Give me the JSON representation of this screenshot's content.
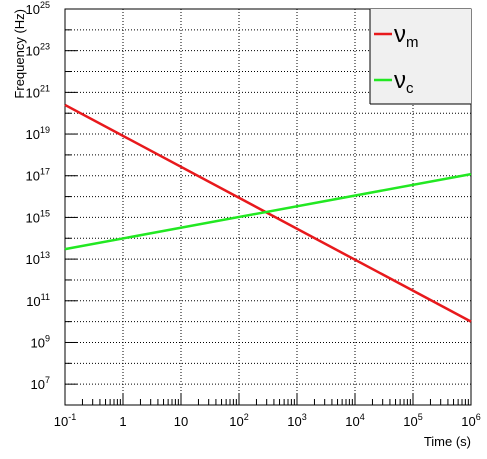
{
  "chart_data": {
    "type": "line",
    "xlabel": "Time (s)",
    "ylabel": "Frequency (Hz)",
    "x_scale": "log",
    "y_scale": "log",
    "xlim": [
      0.1,
      1000000
    ],
    "ylim": [
      1000000,
      1e+25
    ],
    "grid": true,
    "legend_position": "top-right",
    "x_ticks": [
      {
        "value": 0.1,
        "base": "10",
        "exp": "-1"
      },
      {
        "value": 1,
        "base": "1",
        "exp": ""
      },
      {
        "value": 10,
        "base": "10",
        "exp": ""
      },
      {
        "value": 100,
        "base": "10",
        "exp": "2"
      },
      {
        "value": 1000,
        "base": "10",
        "exp": "3"
      },
      {
        "value": 10000,
        "base": "10",
        "exp": "4"
      },
      {
        "value": 100000,
        "base": "10",
        "exp": "5"
      },
      {
        "value": 1000000,
        "base": "10",
        "exp": "6"
      }
    ],
    "y_ticks": [
      {
        "value": 10000000.0,
        "base": "10",
        "exp": "7"
      },
      {
        "value": 1000000000.0,
        "base": "10",
        "exp": "9"
      },
      {
        "value": 100000000000.0,
        "base": "10",
        "exp": "11"
      },
      {
        "value": 10000000000000.0,
        "base": "10",
        "exp": "13"
      },
      {
        "value": 1000000000000000.0,
        "base": "10",
        "exp": "15"
      },
      {
        "value": 1e+17,
        "base": "10",
        "exp": "17"
      },
      {
        "value": 1e+19,
        "base": "10",
        "exp": "19"
      },
      {
        "value": 1e+21,
        "base": "10",
        "exp": "21"
      },
      {
        "value": 1e+23,
        "base": "10",
        "exp": "23"
      },
      {
        "value": 1e+25,
        "base": "10",
        "exp": "25"
      }
    ],
    "series": [
      {
        "name": "ν",
        "subscript": "m",
        "color": "#e8191c",
        "x": [
          0.1,
          1000000
        ],
        "y": [
          2.5e+20,
          10000000000.0
        ]
      },
      {
        "name": "ν",
        "subscript": "c",
        "color": "#22e822",
        "x": [
          0.1,
          1000000
        ],
        "y": [
          30000000000000.0,
          1.2e+17
        ]
      }
    ]
  }
}
